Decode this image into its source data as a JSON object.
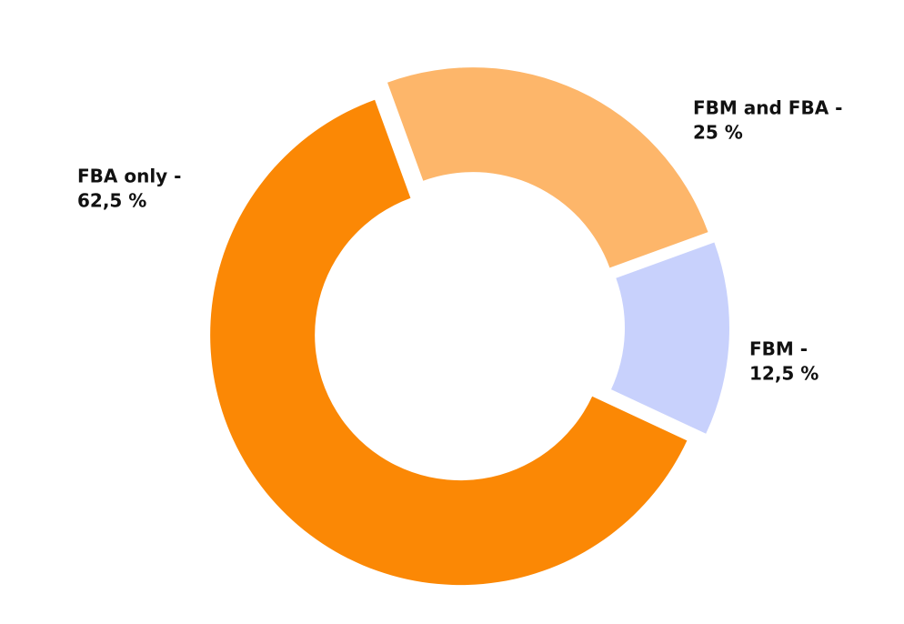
{
  "chart_data": {
    "type": "donut",
    "categories": [
      "FBA only -",
      "FBM and FBA -",
      "FBM -"
    ],
    "series": [
      {
        "values": [
          62.5,
          25,
          12.5
        ],
        "value_labels": [
          "62,5 %",
          "25 %",
          "12,5 %"
        ],
        "colors": [
          "#fb8805",
          "#fdb66a",
          "#c8d1fc"
        ]
      }
    ]
  }
}
